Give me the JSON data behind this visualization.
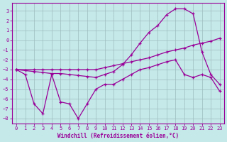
{
  "xlabel": "Windchill (Refroidissement éolien,°C)",
  "bg_color": "#c5e8e8",
  "line_color": "#990099",
  "grid_color": "#9dbdbd",
  "xlim": [
    -0.5,
    23.5
  ],
  "ylim": [
    -8.5,
    3.8
  ],
  "xticks": [
    0,
    1,
    2,
    3,
    4,
    5,
    6,
    7,
    8,
    9,
    10,
    11,
    12,
    13,
    14,
    15,
    16,
    17,
    18,
    19,
    20,
    21,
    22,
    23
  ],
  "yticks": [
    3,
    2,
    1,
    0,
    -1,
    -2,
    -3,
    -4,
    -5,
    -6,
    -7,
    -8
  ],
  "curve1_x": [
    0,
    1,
    2,
    3,
    4,
    5,
    6,
    7,
    8,
    9,
    10,
    11,
    12,
    13,
    14,
    15,
    16,
    17,
    18,
    19,
    20,
    21,
    22,
    23
  ],
  "curve1_y": [
    -3.0,
    -3.1,
    -3.2,
    -3.3,
    -3.4,
    -3.4,
    -3.5,
    -3.6,
    -3.7,
    -3.8,
    -3.5,
    -3.2,
    -2.5,
    -1.5,
    -0.3,
    0.8,
    1.5,
    2.6,
    3.2,
    3.2,
    2.7,
    -1.2,
    -3.5,
    -4.5
  ],
  "curve2_x": [
    0,
    2,
    3,
    4,
    5,
    6,
    7,
    8,
    9,
    10,
    11,
    12,
    13,
    14,
    15,
    16,
    17,
    18,
    19,
    20,
    21,
    22,
    23
  ],
  "curve2_y": [
    -3.0,
    -3.0,
    -3.0,
    -3.0,
    -3.0,
    -3.0,
    -3.0,
    -3.0,
    -3.0,
    -2.8,
    -2.6,
    -2.4,
    -2.2,
    -2.0,
    -1.8,
    -1.5,
    -1.2,
    -1.0,
    -0.8,
    -0.5,
    -0.3,
    -0.1,
    0.2
  ],
  "curve3_x": [
    0,
    1,
    2,
    3,
    4,
    5,
    6,
    7,
    8,
    9,
    10,
    11,
    12,
    13,
    14,
    15,
    16,
    17,
    18,
    19,
    20,
    21,
    22,
    23
  ],
  "curve3_y": [
    -3.0,
    -3.5,
    -6.5,
    -7.5,
    -3.5,
    -6.3,
    -6.5,
    -8.0,
    -6.5,
    -5.0,
    -4.5,
    -4.5,
    -4.0,
    -3.5,
    -3.0,
    -2.8,
    -2.5,
    -2.2,
    -2.0,
    -3.5,
    -3.8,
    -3.5,
    -3.8,
    -5.2
  ]
}
